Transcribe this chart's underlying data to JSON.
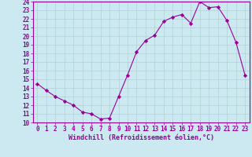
{
  "x": [
    0,
    1,
    2,
    3,
    4,
    5,
    6,
    7,
    8,
    9,
    10,
    11,
    12,
    13,
    14,
    15,
    16,
    17,
    18,
    19,
    20,
    21,
    22,
    23
  ],
  "y": [
    14.5,
    13.7,
    13.0,
    12.5,
    12.0,
    11.2,
    11.0,
    10.4,
    10.5,
    13.0,
    15.5,
    18.2,
    19.5,
    20.1,
    21.7,
    22.2,
    22.5,
    21.5,
    24.0,
    23.3,
    23.4,
    21.8,
    19.3,
    15.5
  ],
  "line_color": "#990099",
  "marker": "D",
  "markersize": 2.2,
  "linewidth": 0.8,
  "bg_color": "#cce8f0",
  "grid_color": "#aacccc",
  "xlabel": "Windchill (Refroidissement éolien,°C)",
  "xlim": [
    -0.5,
    23.5
  ],
  "ylim": [
    10,
    24
  ],
  "yticks": [
    10,
    11,
    12,
    13,
    14,
    15,
    16,
    17,
    18,
    19,
    20,
    21,
    22,
    23,
    24
  ],
  "xticks": [
    0,
    1,
    2,
    3,
    4,
    5,
    6,
    7,
    8,
    9,
    10,
    11,
    12,
    13,
    14,
    15,
    16,
    17,
    18,
    19,
    20,
    21,
    22,
    23
  ],
  "tick_fontsize": 5.5,
  "xlabel_fontsize": 6.0
}
